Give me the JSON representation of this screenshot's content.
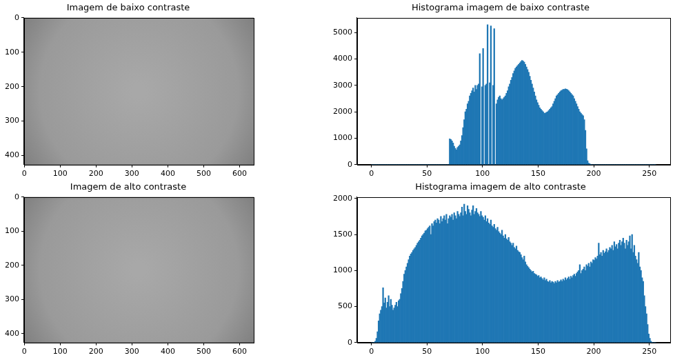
{
  "chart_data": [
    {
      "type": "image",
      "title": "Imagem de baixo contraste",
      "xlim": [
        -0.5,
        639.5
      ],
      "ylim": [
        426.5,
        -0.5
      ],
      "xticks": [
        0,
        100,
        200,
        300,
        400,
        500,
        600
      ],
      "yticks": [
        0,
        100,
        200,
        300,
        400
      ],
      "grid": false
    },
    {
      "type": "histogram",
      "title": "Histograma imagem de baixo contraste",
      "color": "#1f77b4",
      "bins": [
        0,
        1,
        2,
        3,
        4,
        5,
        6,
        7,
        8,
        9,
        10,
        11,
        12,
        13,
        14,
        15,
        16,
        17,
        18,
        19,
        20,
        21,
        22,
        23,
        24,
        25,
        26,
        27,
        28,
        29,
        30,
        31,
        32,
        33,
        34,
        35,
        36,
        37,
        38,
        39,
        40,
        41,
        42,
        43,
        44,
        45,
        46,
        47,
        48,
        49,
        50,
        51,
        52,
        53,
        54,
        55,
        56,
        57,
        58,
        59,
        60,
        61,
        62,
        63,
        64,
        65,
        66,
        67,
        68,
        69,
        70,
        71,
        72,
        73,
        74,
        75,
        76,
        77,
        78,
        79,
        80,
        81,
        82,
        83,
        84,
        85,
        86,
        87,
        88,
        89,
        90,
        91,
        92,
        93,
        94,
        95,
        96,
        97,
        98,
        99,
        100,
        101,
        102,
        103,
        104,
        105,
        106,
        107,
        108,
        109,
        110,
        111,
        112,
        113,
        114,
        115,
        116,
        117,
        118,
        119,
        120,
        121,
        122,
        123,
        124,
        125,
        126,
        127,
        128,
        129,
        130,
        131,
        132,
        133,
        134,
        135,
        136,
        137,
        138,
        139,
        140,
        141,
        142,
        143,
        144,
        145,
        146,
        147,
        148,
        149,
        150,
        151,
        152,
        153,
        154,
        155,
        156,
        157,
        158,
        159,
        160,
        161,
        162,
        163,
        164,
        165,
        166,
        167,
        168,
        169,
        170,
        171,
        172,
        173,
        174,
        175,
        176,
        177,
        178,
        179,
        180,
        181,
        182,
        183,
        184,
        185,
        186,
        187,
        188,
        189,
        190,
        191,
        192,
        193,
        194,
        195,
        196,
        197,
        198,
        199,
        200,
        201,
        202,
        203,
        204,
        205,
        206,
        207,
        208,
        209,
        210,
        211,
        212,
        213,
        214,
        215,
        216,
        217,
        218,
        219,
        220,
        221,
        222,
        223,
        224,
        225,
        226,
        227,
        228,
        229,
        230,
        231,
        232,
        233,
        234,
        235,
        236,
        237,
        238,
        239,
        240,
        241,
        242,
        243,
        244,
        245,
        246,
        247,
        248,
        249,
        250,
        251,
        252,
        253,
        254,
        255,
        256
      ],
      "values": [
        0,
        0,
        0,
        0,
        0,
        0,
        0,
        0,
        0,
        0,
        0,
        0,
        0,
        0,
        0,
        0,
        0,
        0,
        0,
        0,
        0,
        0,
        0,
        0,
        0,
        0,
        0,
        0,
        0,
        0,
        0,
        0,
        0,
        0,
        0,
        0,
        0,
        0,
        0,
        0,
        0,
        0,
        0,
        0,
        0,
        0,
        0,
        0,
        0,
        0,
        0,
        0,
        0,
        0,
        0,
        0,
        0,
        0,
        0,
        0,
        0,
        0,
        0,
        0,
        0,
        0,
        0,
        0,
        0,
        0,
        980,
        950,
        900,
        820,
        700,
        620,
        560,
        650,
        700,
        750,
        900,
        1100,
        1400,
        1700,
        2000,
        2100,
        2300,
        2400,
        2600,
        2700,
        2800,
        2900,
        2750,
        3000,
        2850,
        3000,
        3050,
        4200,
        0,
        2950,
        4400,
        0,
        3000,
        3050,
        5300,
        0,
        3100,
        5250,
        0,
        3000,
        5150,
        0,
        2300,
        2450,
        2550,
        2600,
        2500,
        2450,
        2500,
        2550,
        2600,
        2700,
        2800,
        2950,
        3050,
        3200,
        3300,
        3450,
        3550,
        3650,
        3700,
        3750,
        3800,
        3850,
        3900,
        3950,
        3920,
        3880,
        3800,
        3700,
        3600,
        3500,
        3350,
        3200,
        3050,
        2900,
        2750,
        2600,
        2450,
        2350,
        2250,
        2150,
        2100,
        2050,
        2000,
        1950,
        1950,
        1980,
        2000,
        2050,
        2100,
        2150,
        2200,
        2300,
        2400,
        2500,
        2600,
        2650,
        2700,
        2750,
        2800,
        2820,
        2850,
        2850,
        2870,
        2860,
        2840,
        2800,
        2750,
        2700,
        2650,
        2600,
        2500,
        2400,
        2300,
        2200,
        2100,
        2000,
        1950,
        1900,
        1850,
        1700,
        1300,
        600,
        150,
        60,
        30,
        10,
        0,
        0,
        0,
        0,
        0,
        0,
        0,
        0,
        0,
        0,
        0,
        0,
        0,
        0,
        0,
        0,
        0,
        0,
        0,
        0,
        0,
        0,
        0,
        0,
        0,
        0,
        0,
        0,
        0,
        0,
        0,
        0,
        0,
        0,
        0,
        0,
        0,
        0,
        0,
        0,
        0,
        0,
        0,
        0,
        0,
        0,
        0,
        0,
        0,
        0,
        0,
        0,
        0,
        0,
        0,
        0,
        0,
        0
      ],
      "xlim": [
        -12.8,
        268.8
      ],
      "ylim": [
        0,
        5565
      ],
      "xticks": [
        0,
        50,
        100,
        150,
        200,
        250
      ],
      "yticks": [
        0,
        1000,
        2000,
        3000,
        4000,
        5000
      ],
      "grid": false
    },
    {
      "type": "image",
      "title": "Imagem de alto contraste",
      "xlim": [
        -0.5,
        639.5
      ],
      "ylim": [
        426.5,
        -0.5
      ],
      "xticks": [
        0,
        100,
        200,
        300,
        400,
        500,
        600
      ],
      "yticks": [
        0,
        100,
        200,
        300,
        400
      ],
      "grid": false
    },
    {
      "type": "histogram",
      "title": "Histograma imagem de alto contraste",
      "color": "#1f77b4",
      "bins": [
        0,
        1,
        2,
        3,
        4,
        5,
        6,
        7,
        8,
        9,
        10,
        11,
        12,
        13,
        14,
        15,
        16,
        17,
        18,
        19,
        20,
        21,
        22,
        23,
        24,
        25,
        26,
        27,
        28,
        29,
        30,
        31,
        32,
        33,
        34,
        35,
        36,
        37,
        38,
        39,
        40,
        41,
        42,
        43,
        44,
        45,
        46,
        47,
        48,
        49,
        50,
        51,
        52,
        53,
        54,
        55,
        56,
        57,
        58,
        59,
        60,
        61,
        62,
        63,
        64,
        65,
        66,
        67,
        68,
        69,
        70,
        71,
        72,
        73,
        74,
        75,
        76,
        77,
        78,
        79,
        80,
        81,
        82,
        83,
        84,
        85,
        86,
        87,
        88,
        89,
        90,
        91,
        92,
        93,
        94,
        95,
        96,
        97,
        98,
        99,
        100,
        101,
        102,
        103,
        104,
        105,
        106,
        107,
        108,
        109,
        110,
        111,
        112,
        113,
        114,
        115,
        116,
        117,
        118,
        119,
        120,
        121,
        122,
        123,
        124,
        125,
        126,
        127,
        128,
        129,
        130,
        131,
        132,
        133,
        134,
        135,
        136,
        137,
        138,
        139,
        140,
        141,
        142,
        143,
        144,
        145,
        146,
        147,
        148,
        149,
        150,
        151,
        152,
        153,
        154,
        155,
        156,
        157,
        158,
        159,
        160,
        161,
        162,
        163,
        164,
        165,
        166,
        167,
        168,
        169,
        170,
        171,
        172,
        173,
        174,
        175,
        176,
        177,
        178,
        179,
        180,
        181,
        182,
        183,
        184,
        185,
        186,
        187,
        188,
        189,
        190,
        191,
        192,
        193,
        194,
        195,
        196,
        197,
        198,
        199,
        200,
        201,
        202,
        203,
        204,
        205,
        206,
        207,
        208,
        209,
        210,
        211,
        212,
        213,
        214,
        215,
        216,
        217,
        218,
        219,
        220,
        221,
        222,
        223,
        224,
        225,
        226,
        227,
        228,
        229,
        230,
        231,
        232,
        233,
        234,
        235,
        236,
        237,
        238,
        239,
        240,
        241,
        242,
        243,
        244,
        245,
        246,
        247,
        248,
        249,
        250,
        251,
        252,
        253,
        254,
        255,
        256
      ],
      "values": [
        0,
        0,
        5,
        20,
        60,
        150,
        300,
        400,
        450,
        500,
        760,
        550,
        620,
        480,
        560,
        650,
        500,
        600,
        520,
        450,
        480,
        520,
        560,
        500,
        580,
        600,
        680,
        750,
        850,
        950,
        1000,
        1050,
        1100,
        1150,
        1200,
        1230,
        1250,
        1280,
        1300,
        1320,
        1350,
        1380,
        1400,
        1420,
        1450,
        1480,
        1500,
        1520,
        1550,
        1560,
        1580,
        1600,
        1620,
        1500,
        1650,
        1620,
        1680,
        1700,
        1660,
        1720,
        1700,
        1650,
        1750,
        1680,
        1720,
        1760,
        1700,
        1780,
        1650,
        1720,
        1760,
        1740,
        1780,
        1700,
        1800,
        1760,
        1720,
        1820,
        1780,
        1750,
        1800,
        1880,
        1760,
        1920,
        1820,
        1780,
        1900,
        1850,
        1800,
        1760,
        1840,
        1900,
        1780,
        1820,
        1860,
        1800,
        1780,
        1750,
        1820,
        1760,
        1740,
        1700,
        1760,
        1680,
        1720,
        1660,
        1640,
        1700,
        1620,
        1600,
        1640,
        1580,
        1560,
        1600,
        1540,
        1520,
        1500,
        1560,
        1480,
        1450,
        1500,
        1440,
        1420,
        1460,
        1400,
        1380,
        1350,
        1380,
        1320,
        1300,
        1340,
        1280,
        1260,
        1250,
        1220,
        1180,
        1150,
        1200,
        1120,
        1080,
        1060,
        1040,
        1020,
        1000,
        980,
        990,
        960,
        950,
        940,
        920,
        930,
        900,
        910,
        890,
        870,
        900,
        860,
        880,
        850,
        840,
        860,
        830,
        850,
        840,
        820,
        850,
        830,
        860,
        840,
        850,
        870,
        850,
        880,
        860,
        900,
        870,
        890,
        910,
        880,
        920,
        900,
        930,
        950,
        920,
        960,
        980,
        1000,
        1080,
        960,
        1000,
        1020,
        1050,
        1000,
        1080,
        1060,
        1100,
        1050,
        1120,
        1100,
        1150,
        1140,
        1180,
        1160,
        1200,
        1380,
        1220,
        1250,
        1200,
        1280,
        1240,
        1260,
        1300,
        1250,
        1280,
        1320,
        1300,
        1350,
        1280,
        1400,
        1330,
        1360,
        1300,
        1380,
        1420,
        1350,
        1400,
        1450,
        1380,
        1300,
        1420,
        1350,
        1400,
        1480,
        1300,
        1500,
        1250,
        1350,
        1200,
        1150,
        1100,
        1250,
        1050,
        1000,
        900,
        850,
        650,
        500,
        400,
        250,
        120,
        60,
        20,
        5,
        0,
        0,
        0
      ],
      "xlim": [
        -12.8,
        268.8
      ],
      "ylim": [
        0,
        2021
      ],
      "xticks": [
        0,
        50,
        100,
        150,
        200,
        250
      ],
      "yticks": [
        0,
        500,
        1000,
        1500,
        2000
      ],
      "grid": false
    }
  ]
}
